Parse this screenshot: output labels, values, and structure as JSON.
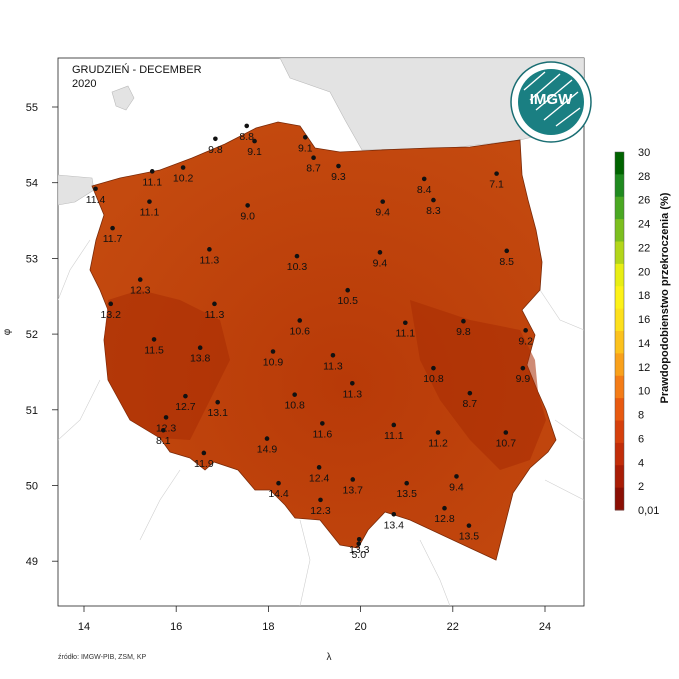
{
  "map": {
    "title_line1": "GRUDZIEŃ - DECEMBER",
    "title_line2": "2020",
    "x_axis_label": "λ",
    "y_axis_label": "φ",
    "x_ticks": [
      "14",
      "16",
      "18",
      "20",
      "22",
      "24"
    ],
    "y_ticks": [
      "55",
      "54",
      "53",
      "52",
      "51",
      "50",
      "49"
    ],
    "source": "źródło: IMGW-PIB, ZSM, KP",
    "logo_text": "IMGW",
    "colors": {
      "fill_main": "#b83a08",
      "fill_dark": "#a82c04",
      "fill_light": "#c44a0f",
      "neighbor": "#e3e3e3",
      "border": "#bbbbbb"
    }
  },
  "legend": {
    "title": "Prawdopodobienstwo przekroczenia (%)",
    "labels": [
      "30",
      "28",
      "26",
      "24",
      "22",
      "20",
      "18",
      "16",
      "14",
      "12",
      "10",
      "8",
      "6",
      "4",
      "2",
      "0,01"
    ],
    "colors": [
      "#006400",
      "#1f8a1f",
      "#4aa822",
      "#7cbf1e",
      "#b3d61a",
      "#e8ee14",
      "#fdf218",
      "#fde01c",
      "#fcc21d",
      "#f9a11b",
      "#f47c17",
      "#e85a10",
      "#d6400c",
      "#c22d09",
      "#a91d06",
      "#8b0f04"
    ]
  },
  "stations": [
    {
      "v": "11.4",
      "lon": 14.25,
      "lat": 53.92
    },
    {
      "v": "11.1",
      "lon": 15.48,
      "lat": 54.15
    },
    {
      "v": "10.2",
      "lon": 16.15,
      "lat": 54.2
    },
    {
      "v": "9.8",
      "lon": 16.85,
      "lat": 54.58
    },
    {
      "v": "8.8",
      "lon": 17.53,
      "lat": 54.75
    },
    {
      "v": "9.1",
      "lon": 17.7,
      "lat": 54.55
    },
    {
      "v": "9.1",
      "lon": 18.8,
      "lat": 54.6
    },
    {
      "v": "8.7",
      "lon": 18.98,
      "lat": 54.33
    },
    {
      "v": "9.3",
      "lon": 19.52,
      "lat": 54.22
    },
    {
      "v": "8.4",
      "lon": 21.38,
      "lat": 54.05
    },
    {
      "v": "7.1",
      "lon": 22.95,
      "lat": 54.12
    },
    {
      "v": "11.1",
      "lon": 15.42,
      "lat": 53.75
    },
    {
      "v": "9.0",
      "lon": 17.55,
      "lat": 53.7
    },
    {
      "v": "9.4",
      "lon": 20.48,
      "lat": 53.75
    },
    {
      "v": "8.3",
      "lon": 21.58,
      "lat": 53.77
    },
    {
      "v": "11.7",
      "lon": 14.62,
      "lat": 53.4
    },
    {
      "v": "11.3",
      "lon": 16.72,
      "lat": 53.12
    },
    {
      "v": "10.3",
      "lon": 18.62,
      "lat": 53.03
    },
    {
      "v": "9.4",
      "lon": 20.42,
      "lat": 53.08
    },
    {
      "v": "8.5",
      "lon": 23.17,
      "lat": 53.1
    },
    {
      "v": "12.3",
      "lon": 15.22,
      "lat": 52.72
    },
    {
      "v": "10.5",
      "lon": 19.72,
      "lat": 52.58
    },
    {
      "v": "13.2",
      "lon": 14.58,
      "lat": 52.4
    },
    {
      "v": "11.3",
      "lon": 16.83,
      "lat": 52.4
    },
    {
      "v": "10.6",
      "lon": 18.68,
      "lat": 52.18
    },
    {
      "v": "11.1",
      "lon": 20.97,
      "lat": 52.15
    },
    {
      "v": "9.8",
      "lon": 22.23,
      "lat": 52.17
    },
    {
      "v": "9.2",
      "lon": 23.58,
      "lat": 52.05
    },
    {
      "v": "11.5",
      "lon": 15.52,
      "lat": 51.93
    },
    {
      "v": "13.8",
      "lon": 16.52,
      "lat": 51.82
    },
    {
      "v": "10.9",
      "lon": 18.1,
      "lat": 51.77
    },
    {
      "v": "11.3",
      "lon": 19.4,
      "lat": 51.72
    },
    {
      "v": "10.8",
      "lon": 21.58,
      "lat": 51.55
    },
    {
      "v": "9.9",
      "lon": 23.52,
      "lat": 51.55
    },
    {
      "v": "11.3",
      "lon": 19.82,
      "lat": 51.35
    },
    {
      "v": "12.7",
      "lon": 16.2,
      "lat": 51.18
    },
    {
      "v": "13.1",
      "lon": 16.9,
      "lat": 51.1
    },
    {
      "v": "10.8",
      "lon": 18.57,
      "lat": 51.2
    },
    {
      "v": "8.7",
      "lon": 22.37,
      "lat": 51.22
    },
    {
      "v": "11.6",
      "lon": 19.17,
      "lat": 50.82
    },
    {
      "v": "11.1",
      "lon": 20.72,
      "lat": 50.8
    },
    {
      "v": "11.2",
      "lon": 21.68,
      "lat": 50.7
    },
    {
      "v": "10.7",
      "lon": 23.15,
      "lat": 50.7
    },
    {
      "v": "12.3",
      "lon": 15.78,
      "lat": 50.9
    },
    {
      "v": "8.1",
      "lon": 15.72,
      "lat": 50.73
    },
    {
      "v": "14.9",
      "lon": 17.97,
      "lat": 50.62
    },
    {
      "v": "11.9",
      "lon": 16.6,
      "lat": 50.43
    },
    {
      "v": "12.4",
      "lon": 19.1,
      "lat": 50.24
    },
    {
      "v": "13.7",
      "lon": 19.83,
      "lat": 50.08
    },
    {
      "v": "13.5",
      "lon": 21.0,
      "lat": 50.03
    },
    {
      "v": "9.4",
      "lon": 22.08,
      "lat": 50.12
    },
    {
      "v": "14.4",
      "lon": 18.22,
      "lat": 50.03
    },
    {
      "v": "12.3",
      "lon": 19.13,
      "lat": 49.81
    },
    {
      "v": "13.4",
      "lon": 20.72,
      "lat": 49.62
    },
    {
      "v": "12.8",
      "lon": 21.82,
      "lat": 49.7
    },
    {
      "v": "13.5",
      "lon": 22.35,
      "lat": 49.47
    },
    {
      "v": "13.3",
      "lon": 19.97,
      "lat": 49.29
    },
    {
      "v": "5.0",
      "lon": 19.96,
      "lat": 49.23
    }
  ]
}
